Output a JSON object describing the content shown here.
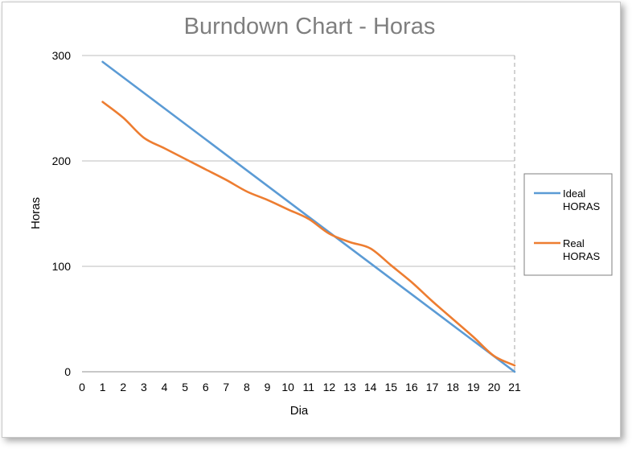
{
  "chart_data": {
    "type": "line",
    "title": "Burndown Chart - Horas",
    "xlabel": "Dia",
    "ylabel": "Horas",
    "xlim": [
      0,
      21
    ],
    "ylim": [
      0,
      300
    ],
    "x_ticks": [
      "0",
      "1",
      "2",
      "3",
      "4",
      "5",
      "6",
      "7",
      "8",
      "9",
      "10",
      "11",
      "12",
      "13",
      "14",
      "15",
      "16",
      "17",
      "18",
      "19",
      "20",
      "21"
    ],
    "y_ticks": [
      "0",
      "100",
      "200",
      "300"
    ],
    "grid": true,
    "legend_position": "right",
    "series": [
      {
        "name_line1": "Ideal",
        "name_line2": "HORAS",
        "color": "#5b9bd5",
        "x": [
          1,
          2,
          3,
          4,
          5,
          6,
          7,
          8,
          9,
          10,
          11,
          12,
          13,
          14,
          15,
          16,
          17,
          18,
          19,
          20,
          21
        ],
        "values": [
          294,
          279.3,
          264.6,
          249.9,
          235.2,
          220.5,
          205.8,
          191.1,
          176.4,
          161.7,
          147,
          132.3,
          117.6,
          102.9,
          88.2,
          73.5,
          58.8,
          44.1,
          29.4,
          14.7,
          0
        ]
      },
      {
        "name_line1": "Real",
        "name_line2": "HORAS",
        "color": "#ed7d31",
        "x": [
          1,
          2,
          3,
          4,
          5,
          6,
          7,
          8,
          9,
          10,
          11,
          12,
          13,
          14,
          15,
          16,
          17,
          18,
          19,
          20,
          21
        ],
        "values": [
          256,
          241,
          222,
          212,
          202,
          192,
          182,
          171,
          163,
          154,
          145,
          131,
          123,
          117,
          101,
          85,
          67,
          50,
          33,
          15,
          6
        ]
      }
    ]
  }
}
